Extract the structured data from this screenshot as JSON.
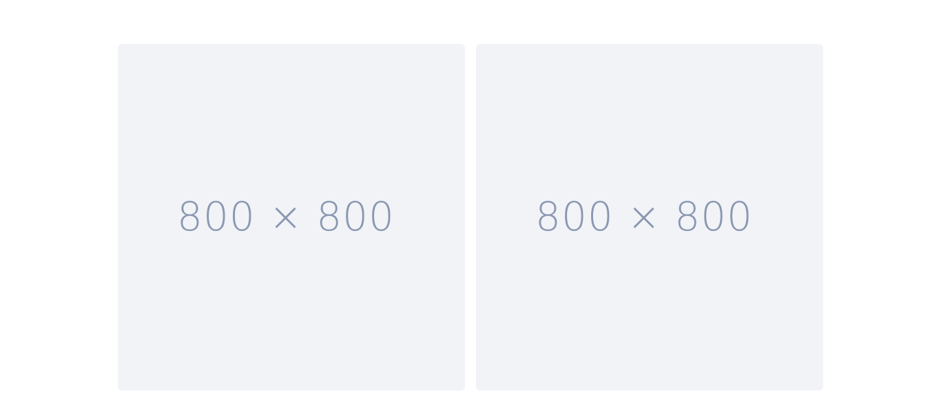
{
  "gallery": {
    "images": [
      {
        "label": "800 × 800"
      },
      {
        "label": "800 × 800"
      }
    ]
  }
}
